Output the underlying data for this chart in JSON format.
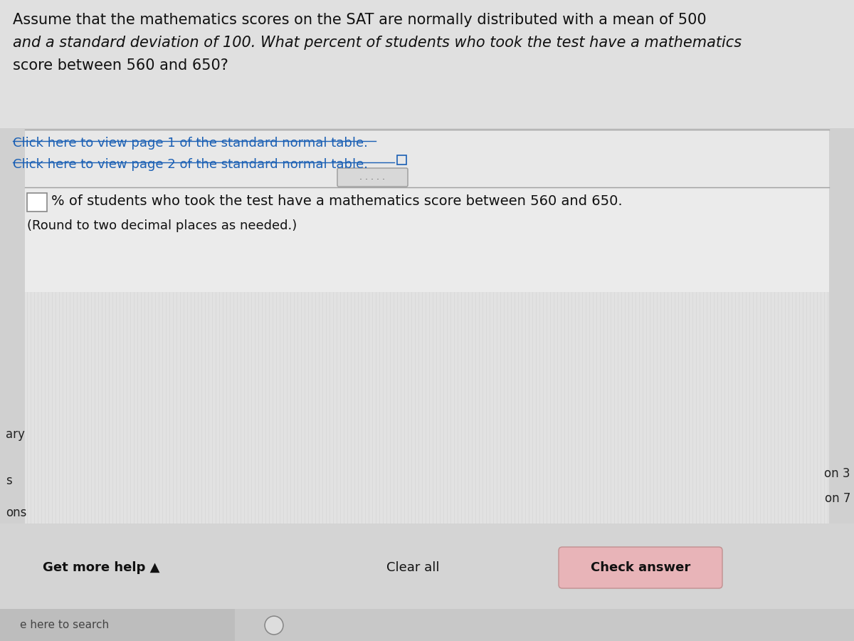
{
  "bg_color": "#d0d0d0",
  "main_bg": "#e8e8e8",
  "title_text_line1": "Assume that the mathematics scores on the SAT are normally distributed with a mean of 500",
  "title_text_line2": "and a standard deviation of 100. What percent of students who took the test have a mathematics",
  "title_text_line3": "score between 560 and 650?",
  "link1": "Click here to view page 1 of the standard normal table.",
  "link2": "Click here to view page 2 of the standard normal table.",
  "link_color": "#1a5fb4",
  "answer_text": "% of students who took the test have a mathematics score between 560 and 650.",
  "round_text": "(Round to two decimal places as needed.)",
  "get_more_help": "Get more help ▲",
  "clear_all": "Clear all",
  "check_answer": "Check answer",
  "check_answer_bg": "#e8b4b8",
  "sidebar_labels": [
    "ary",
    "s",
    "ons"
  ],
  "sidebar_right_labels": [
    "on 3",
    "on 7"
  ],
  "separator_color": "#a0a0a0",
  "input_box_color": "#ffffff",
  "input_box_border": "#888888",
  "font_size_title": 15,
  "font_size_links": 13,
  "font_size_answer": 14,
  "font_size_bottom": 12
}
